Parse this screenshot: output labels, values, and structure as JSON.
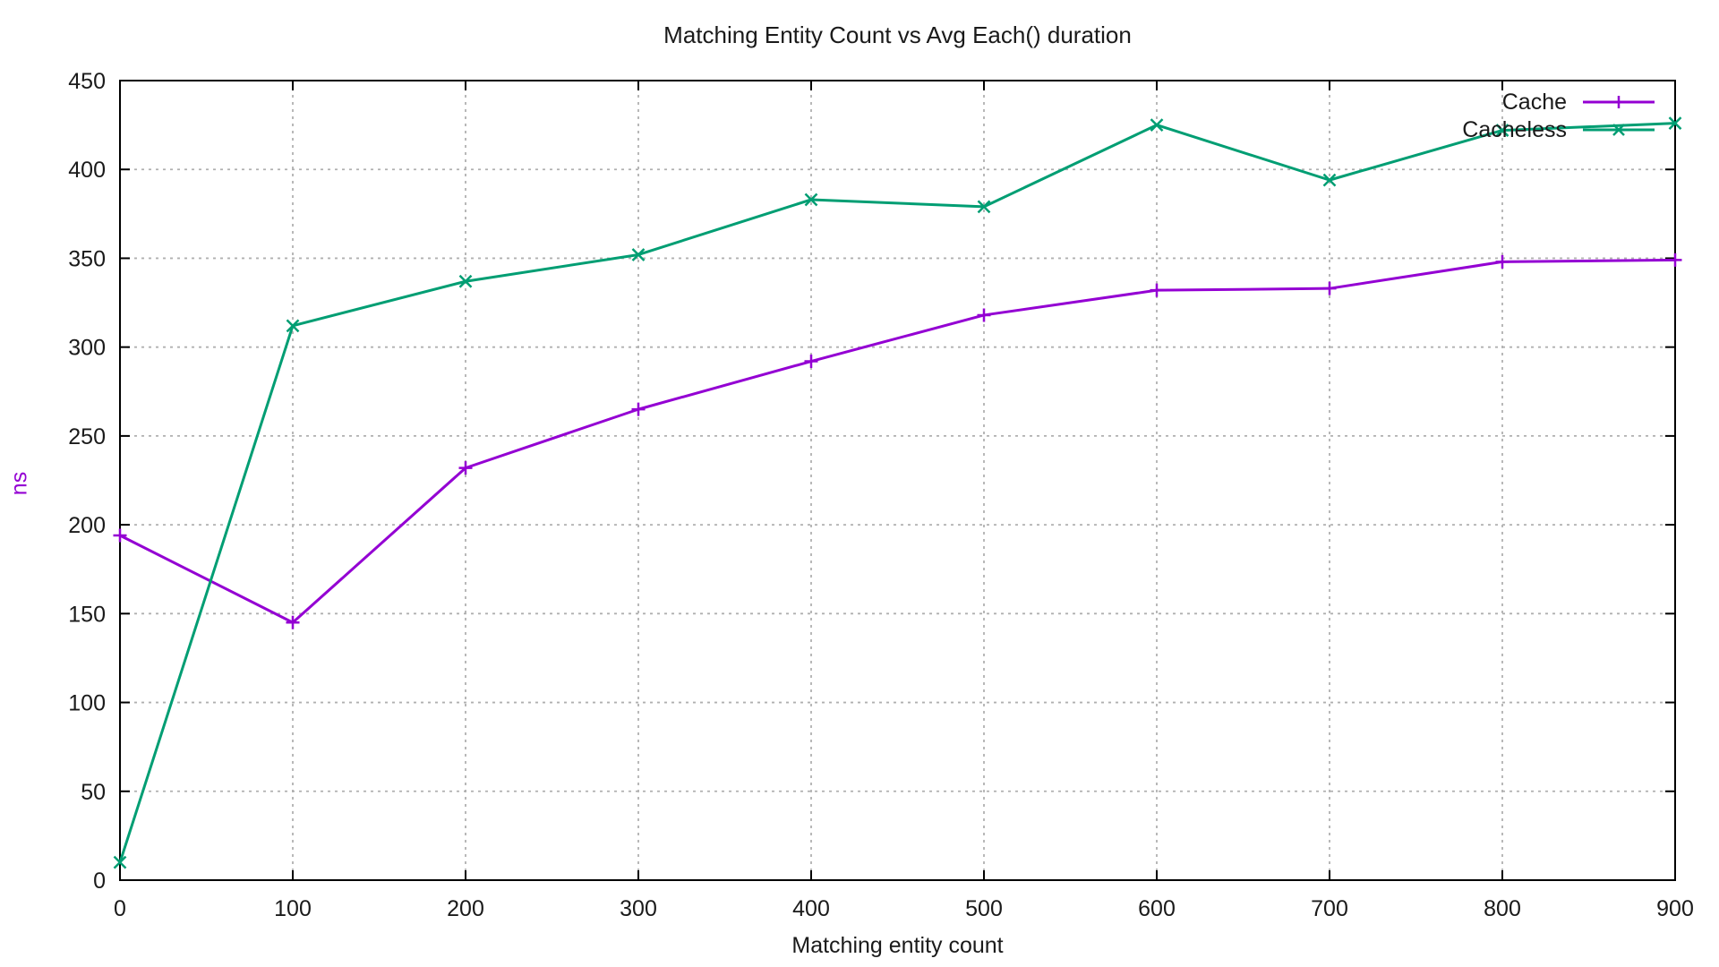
{
  "title": "Matching Entity Count vs Avg Each() duration",
  "chart_data": {
    "type": "line",
    "title": "Matching Entity Count vs Avg Each() duration",
    "xlabel": "Matching entity count",
    "ylabel": "ns",
    "ylabel_color": "#9400d3",
    "xlim": [
      0,
      900
    ],
    "ylim": [
      0,
      450
    ],
    "xticks": [
      0,
      100,
      200,
      300,
      400,
      500,
      600,
      700,
      800,
      900
    ],
    "yticks": [
      0,
      50,
      100,
      150,
      200,
      250,
      300,
      350,
      400,
      450
    ],
    "grid": true,
    "grid_color": "#b0b0b0",
    "legend_position": "top-right",
    "x": [
      0,
      100,
      200,
      300,
      400,
      500,
      600,
      700,
      800,
      900
    ],
    "series": [
      {
        "name": "Cache",
        "color": "#9400d3",
        "marker": "plus",
        "values": [
          194,
          145,
          232,
          265,
          292,
          318,
          332,
          333,
          348,
          349
        ]
      },
      {
        "name": "Cacheless",
        "color": "#009e73",
        "marker": "cross",
        "values": [
          10,
          312,
          337,
          352,
          383,
          379,
          425,
          394,
          422,
          426
        ]
      }
    ]
  }
}
